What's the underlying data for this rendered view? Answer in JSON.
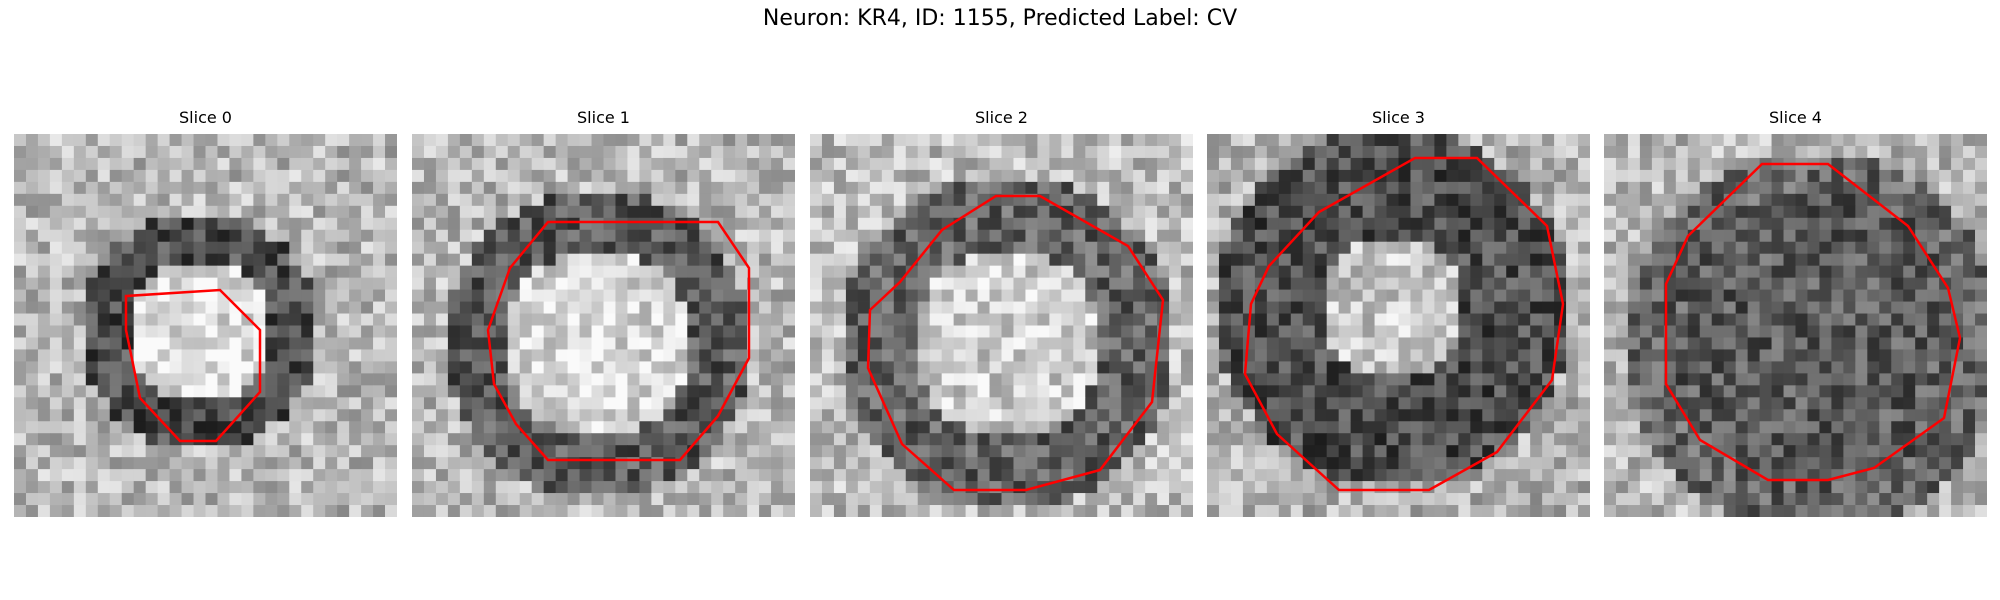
{
  "figure": {
    "title": "Neuron: KR4, ID: 1155, Predicted Label: CV"
  },
  "panels": [
    {
      "label": "Slice 0"
    },
    {
      "label": "Slice 1"
    },
    {
      "label": "Slice 2"
    },
    {
      "label": "Slice 3"
    },
    {
      "label": "Slice 4"
    }
  ],
  "colors": {
    "contour": "#ff0000",
    "colormap": "grayscale"
  }
}
